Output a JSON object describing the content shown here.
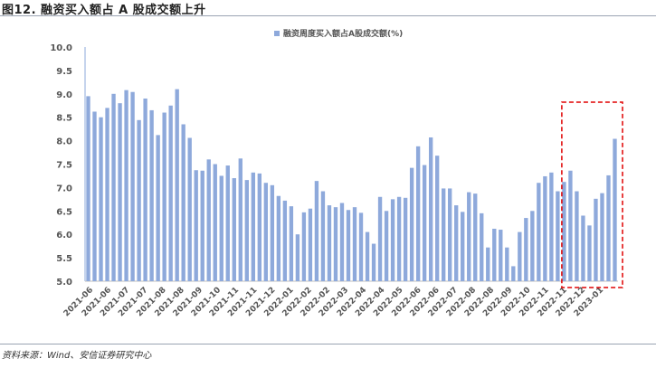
{
  "figure": {
    "title": "图12. 融资买入额占 A 股成交额上升",
    "source": "资料来源：Wind、安信证券研究中心"
  },
  "chart_data": {
    "type": "bar",
    "legend": "融资周度买入额占A股成交额(%)",
    "series_color": "#8EA9DB",
    "highlight_color": "#E00000",
    "ylim": [
      5.0,
      10.0
    ],
    "yticks": [
      "5.0",
      "5.5",
      "6.0",
      "6.5",
      "7.0",
      "7.5",
      "8.0",
      "8.5",
      "9.0",
      "9.5",
      "10.0"
    ],
    "xtick_labels": [
      "2021-06",
      "2021-06",
      "2021-07",
      "2021-07",
      "2021-08",
      "2021-08",
      "2021-09",
      "2021-10",
      "2021-11",
      "2021-11",
      "2021-12",
      "2022-01",
      "2022-02",
      "2022-02",
      "2022-03",
      "2022-04",
      "2022-04",
      "2022-05",
      "2022-06",
      "2022-06",
      "2022-07",
      "2022-08",
      "2022-08",
      "2022-09",
      "2022-10",
      "2022-11",
      "2022-11",
      "2022-12",
      "2023-01"
    ],
    "values": [
      8.95,
      8.62,
      8.5,
      8.7,
      9.0,
      8.8,
      9.08,
      9.04,
      8.44,
      8.9,
      8.65,
      8.12,
      8.6,
      8.75,
      9.1,
      8.35,
      8.06,
      7.37,
      7.36,
      7.6,
      7.5,
      7.25,
      7.47,
      7.2,
      7.62,
      7.16,
      7.32,
      7.3,
      7.1,
      7.05,
      6.82,
      6.72,
      6.6,
      6.0,
      6.47,
      6.55,
      7.14,
      6.92,
      6.62,
      6.58,
      6.67,
      6.52,
      6.58,
      6.46,
      6.05,
      5.8,
      6.8,
      6.5,
      6.75,
      6.8,
      6.78,
      7.42,
      7.88,
      7.48,
      8.07,
      7.68,
      6.98,
      6.98,
      6.62,
      6.48,
      6.9,
      6.87,
      6.45,
      5.72,
      6.12,
      6.1,
      5.72,
      5.32,
      6.05,
      6.35,
      6.5,
      7.1,
      7.24,
      7.32,
      6.92,
      7.12,
      7.36,
      6.92,
      6.4,
      6.19,
      6.76,
      6.88,
      7.26,
      8.04
    ],
    "highlight_range": [
      76,
      83
    ]
  }
}
